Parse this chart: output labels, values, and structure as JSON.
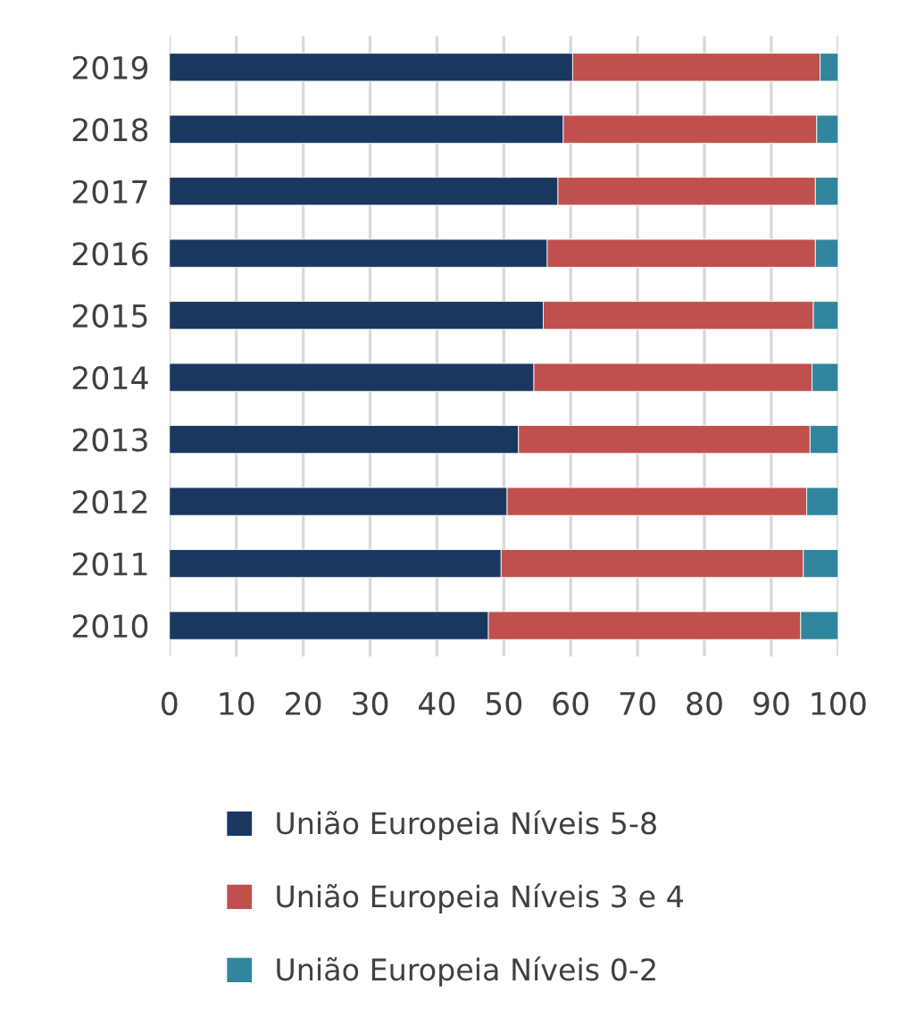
{
  "chart_data": {
    "type": "bar",
    "orientation": "horizontal",
    "stacked": true,
    "categories": [
      "2019",
      "2018",
      "2017",
      "2016",
      "2015",
      "2014",
      "2013",
      "2012",
      "2011",
      "2010"
    ],
    "series": [
      {
        "name": "União Europeia Níveis 5-8",
        "color": "#1a3760",
        "values": [
          60.3,
          58.9,
          58.1,
          56.5,
          55.9,
          54.5,
          52.2,
          50.5,
          49.6,
          47.7
        ]
      },
      {
        "name": "União Europeia Níveis 3 e 4",
        "color": "#c0504d",
        "values": [
          37.0,
          37.9,
          38.5,
          40.1,
          40.4,
          41.6,
          43.6,
          44.8,
          45.2,
          46.7
        ]
      },
      {
        "name": "União Europeia Níveis 0-2",
        "color": "#31859c",
        "values": [
          2.7,
          3.2,
          3.4,
          3.4,
          3.7,
          3.9,
          4.2,
          4.7,
          5.2,
          5.6
        ]
      }
    ],
    "xlim": [
      0,
      100
    ],
    "xticks": [
      0,
      10,
      20,
      30,
      40,
      50,
      60,
      70,
      80,
      90,
      100
    ],
    "grid": "x",
    "legend": "bottom"
  }
}
